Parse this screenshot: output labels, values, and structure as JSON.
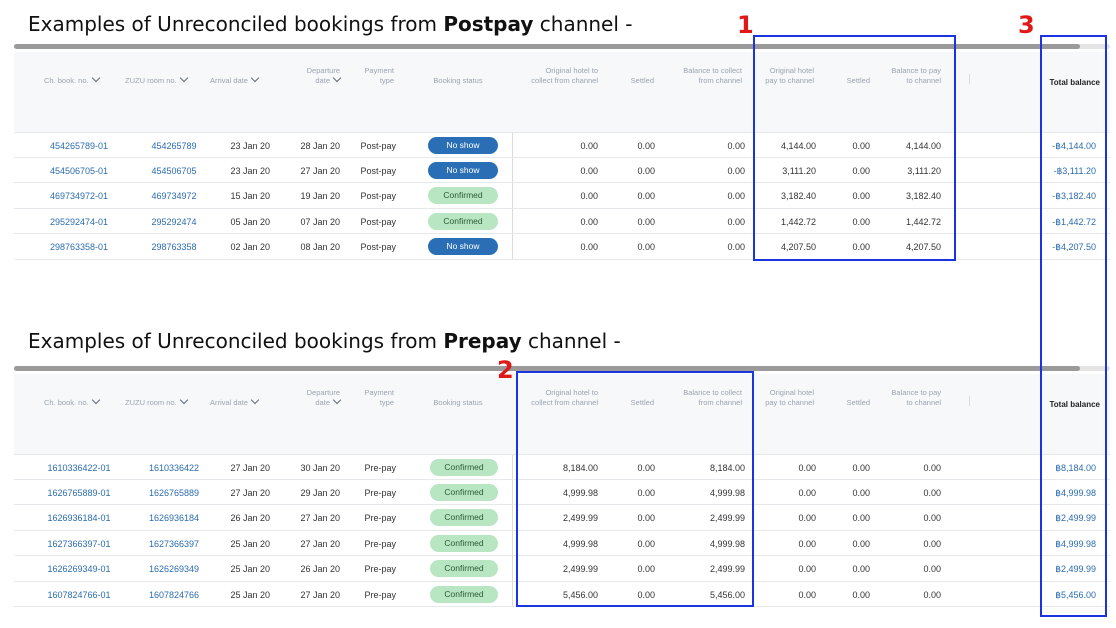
{
  "postpay": {
    "heading_pre": "Examples of Unreconciled bookings from ",
    "heading_bold": "Postpay",
    "heading_post": " channel -",
    "columns": {
      "ch_book_no": "Ch. book. no.",
      "zuzu_room_no": "ZUZU room no.",
      "arrival_date": "Arrival date",
      "departure_date_1": "Departure",
      "departure_date_2": "date",
      "payment_type_1": "Payment",
      "payment_type_2": "type",
      "booking_status": "Booking status",
      "orig_collect_1": "Original hotel to",
      "orig_collect_2": "collect from channel",
      "settled_a": "Settled",
      "bal_collect_1": "Balance to collect",
      "bal_collect_2": "from channel",
      "orig_pay_1": "Original hotel",
      "orig_pay_2": "pay to channel",
      "settled_b": "Settled",
      "bal_pay_1": "Balance to pay",
      "bal_pay_2": "to channel",
      "total_balance": "Total balance"
    },
    "rows": [
      {
        "ch": "454265789-01",
        "zuzu": "454265789",
        "arr": "23 Jan 20",
        "dep": "28 Jan 20",
        "pay": "Post-pay",
        "status": "No show",
        "oc": "0.00",
        "sa": "0.00",
        "bc": "0.00",
        "op": "4,144.00",
        "sb": "0.00",
        "bp": "4,144.00",
        "total": "-฿4,144.00"
      },
      {
        "ch": "454506705-01",
        "zuzu": "454506705",
        "arr": "23 Jan 20",
        "dep": "27 Jan 20",
        "pay": "Post-pay",
        "status": "No show",
        "oc": "0.00",
        "sa": "0.00",
        "bc": "0.00",
        "op": "3,111.20",
        "sb": "0.00",
        "bp": "3,111.20",
        "total": "-฿3,111.20"
      },
      {
        "ch": "469734972-01",
        "zuzu": "469734972",
        "arr": "15 Jan 20",
        "dep": "19 Jan 20",
        "pay": "Post-pay",
        "status": "Confirmed",
        "oc": "0.00",
        "sa": "0.00",
        "bc": "0.00",
        "op": "3,182.40",
        "sb": "0.00",
        "bp": "3,182.40",
        "total": "-฿3,182.40"
      },
      {
        "ch": "295292474-01",
        "zuzu": "295292474",
        "arr": "05 Jan 20",
        "dep": "07 Jan 20",
        "pay": "Post-pay",
        "status": "Confirmed",
        "oc": "0.00",
        "sa": "0.00",
        "bc": "0.00",
        "op": "1,442.72",
        "sb": "0.00",
        "bp": "1,442.72",
        "total": "-฿1,442.72"
      },
      {
        "ch": "298763358-01",
        "zuzu": "298763358",
        "arr": "02 Jan 20",
        "dep": "08 Jan 20",
        "pay": "Post-pay",
        "status": "No show",
        "oc": "0.00",
        "sa": "0.00",
        "bc": "0.00",
        "op": "4,207.50",
        "sb": "0.00",
        "bp": "4,207.50",
        "total": "-฿4,207.50"
      }
    ]
  },
  "prepay": {
    "heading_pre": "Examples of Unreconciled bookings from ",
    "heading_bold": "Prepay",
    "heading_post": " channel -",
    "columns": {
      "ch_book_no": "Ch. book. no.",
      "zuzu_room_no": "ZUZU room no.",
      "arrival_date": "Arrival date",
      "departure_date_1": "Departure",
      "departure_date_2": "date",
      "payment_type_1": "Payment",
      "payment_type_2": "type",
      "booking_status": "Booking status",
      "orig_collect_1": "Original hotel to",
      "orig_collect_2": "collect from channel",
      "settled_a": "Settled",
      "bal_collect_1": "Balance to collect",
      "bal_collect_2": "from channel",
      "orig_pay_1": "Original hotel",
      "orig_pay_2": "pay to channel",
      "settled_b": "Settled",
      "bal_pay_1": "Balance to pay",
      "bal_pay_2": "to channel",
      "total_balance": "Total balance"
    },
    "rows": [
      {
        "ch": "1610336422-01",
        "zuzu": "1610336422",
        "arr": "27 Jan 20",
        "dep": "30 Jan 20",
        "pay": "Pre-pay",
        "status": "Confirmed",
        "oc": "8,184.00",
        "sa": "0.00",
        "bc": "8,184.00",
        "op": "0.00",
        "sb": "0.00",
        "bp": "0.00",
        "total": "฿8,184.00"
      },
      {
        "ch": "1626765889-01",
        "zuzu": "1626765889",
        "arr": "27 Jan 20",
        "dep": "29 Jan 20",
        "pay": "Pre-pay",
        "status": "Confirmed",
        "oc": "4,999.98",
        "sa": "0.00",
        "bc": "4,999.98",
        "op": "0.00",
        "sb": "0.00",
        "bp": "0.00",
        "total": "฿4,999.98"
      },
      {
        "ch": "1626936184-01",
        "zuzu": "1626936184",
        "arr": "26 Jan 20",
        "dep": "27 Jan 20",
        "pay": "Pre-pay",
        "status": "Confirmed",
        "oc": "2,499.99",
        "sa": "0.00",
        "bc": "2,499.99",
        "op": "0.00",
        "sb": "0.00",
        "bp": "0.00",
        "total": "฿2,499.99"
      },
      {
        "ch": "1627366397-01",
        "zuzu": "1627366397",
        "arr": "25 Jan 20",
        "dep": "27 Jan 20",
        "pay": "Pre-pay",
        "status": "Confirmed",
        "oc": "4,999.98",
        "sa": "0.00",
        "bc": "4,999.98",
        "op": "0.00",
        "sb": "0.00",
        "bp": "0.00",
        "total": "฿4,999.98"
      },
      {
        "ch": "1626269349-01",
        "zuzu": "1626269349",
        "arr": "25 Jan 20",
        "dep": "26 Jan 20",
        "pay": "Pre-pay",
        "status": "Confirmed",
        "oc": "2,499.99",
        "sa": "0.00",
        "bc": "2,499.99",
        "op": "0.00",
        "sb": "0.00",
        "bp": "0.00",
        "total": "฿2,499.99"
      },
      {
        "ch": "1607824766-01",
        "zuzu": "1607824766",
        "arr": "25 Jan 20",
        "dep": "27 Jan 20",
        "pay": "Pre-pay",
        "status": "Confirmed",
        "oc": "5,456.00",
        "sa": "0.00",
        "bc": "5,456.00",
        "op": "0.00",
        "sb": "0.00",
        "bp": "0.00",
        "total": "฿5,456.00"
      }
    ]
  },
  "markers": {
    "one": "1",
    "two": "2",
    "three": "3"
  },
  "colors": {
    "box_border": "#1a35e0",
    "marker": "#e01818",
    "no_show": "#2a6fb5",
    "confirmed": "#b8e6c2",
    "link": "#2b6cb0"
  }
}
